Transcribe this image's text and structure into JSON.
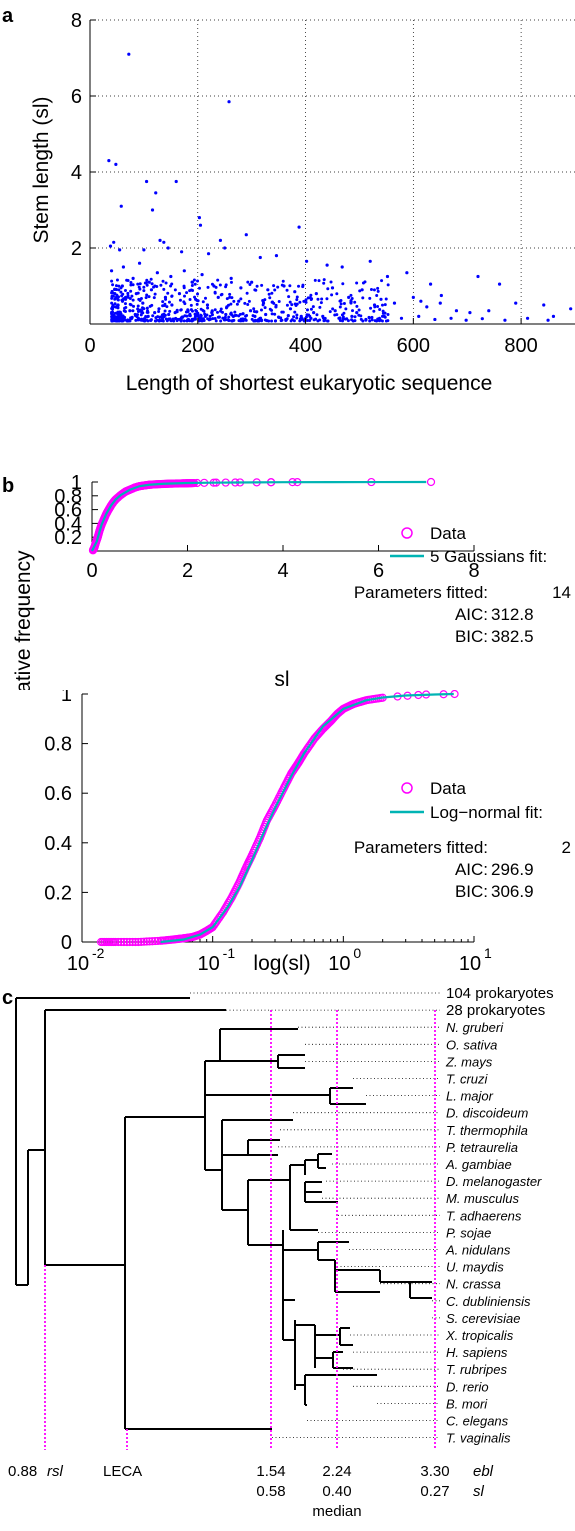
{
  "panels": {
    "a": "a",
    "b": "b",
    "c": "c"
  },
  "chart_data": [
    {
      "type": "scatter",
      "panel": "a",
      "xlabel": "Length of shortest eukaryotic sequence",
      "ylabel": "Stem length (sl)",
      "xlim": [
        0,
        900
      ],
      "ylim": [
        0,
        8
      ],
      "xticks": [
        0,
        200,
        400,
        600,
        800
      ],
      "yticks": [
        2,
        4,
        6,
        8
      ],
      "grid": true,
      "color": "#0000ff",
      "points": [
        [
          72,
          7.1
        ],
        [
          258,
          5.85
        ],
        [
          35,
          4.3
        ],
        [
          48,
          4.2
        ],
        [
          105,
          3.75
        ],
        [
          160,
          3.75
        ],
        [
          58,
          3.1
        ],
        [
          122,
          3.45
        ],
        [
          116,
          3.0
        ],
        [
          388,
          2.55
        ],
        [
          203,
          2.8
        ],
        [
          205,
          2.6
        ],
        [
          242,
          2.2
        ],
        [
          290,
          2.35
        ],
        [
          44,
          2.15
        ],
        [
          38,
          2.05
        ],
        [
          55,
          1.95
        ],
        [
          130,
          2.2
        ],
        [
          137,
          2.15
        ],
        [
          145,
          2.0
        ],
        [
          100,
          1.95
        ],
        [
          170,
          1.9
        ],
        [
          220,
          1.85
        ],
        [
          250,
          2.0
        ],
        [
          316,
          1.75
        ],
        [
          346,
          1.8
        ],
        [
          402,
          1.65
        ],
        [
          440,
          1.55
        ],
        [
          468,
          1.5
        ],
        [
          520,
          1.65
        ],
        [
          552,
          1.25
        ],
        [
          588,
          1.35
        ],
        [
          632,
          1.05
        ],
        [
          720,
          1.25
        ],
        [
          760,
          1.05
        ],
        [
          790,
          0.55
        ],
        [
          842,
          0.5
        ],
        [
          892,
          0.4
        ],
        [
          860,
          0.2
        ],
        [
          40,
          1.4
        ],
        [
          62,
          1.5
        ],
        [
          80,
          1.2
        ],
        [
          92,
          1.6
        ],
        [
          110,
          1.1
        ],
        [
          125,
          1.35
        ],
        [
          150,
          1.25
        ],
        [
          175,
          1.4
        ],
        [
          190,
          1.1
        ],
        [
          208,
          1.3
        ],
        [
          230,
          1.0
        ],
        [
          262,
          1.2
        ],
        [
          280,
          0.95
        ],
        [
          300,
          1.1
        ],
        [
          330,
          0.9
        ],
        [
          360,
          1.0
        ],
        [
          380,
          0.85
        ],
        [
          420,
          0.8
        ],
        [
          450,
          0.95
        ],
        [
          480,
          0.7
        ],
        [
          505,
          0.9
        ],
        [
          540,
          0.65
        ],
        [
          565,
          0.55
        ],
        [
          600,
          0.7
        ],
        [
          625,
          0.45
        ],
        [
          650,
          0.55
        ],
        [
          680,
          0.35
        ],
        [
          705,
          0.3
        ],
        [
          740,
          0.35
        ],
        [
          652,
          0.75
        ],
        [
          614,
          0.6
        ],
        [
          528,
          0.5
        ],
        [
          495,
          0.3
        ],
        [
          455,
          0.35
        ],
        [
          415,
          0.3
        ],
        [
          372,
          0.4
        ],
        [
          345,
          0.45
        ],
        [
          322,
          0.55
        ],
        [
          298,
          0.35
        ],
        [
          276,
          0.6
        ],
        [
          254,
          0.45
        ],
        [
          238,
          0.7
        ],
        [
          218,
          0.5
        ],
        [
          196,
          0.65
        ],
        [
          182,
          0.35
        ],
        [
          166,
          0.8
        ],
        [
          152,
          0.5
        ],
        [
          140,
          0.7
        ],
        [
          128,
          0.4
        ],
        [
          114,
          0.9
        ],
        [
          98,
          0.55
        ],
        [
          86,
          0.8
        ],
        [
          74,
          0.35
        ],
        [
          66,
          0.65
        ],
        [
          52,
          0.5
        ],
        [
          46,
          0.8
        ],
        [
          60,
          1.0
        ],
        [
          84,
          0.25
        ],
        [
          96,
          0.35
        ],
        [
          108,
          0.2
        ],
        [
          120,
          0.3
        ],
        [
          134,
          0.2
        ],
        [
          146,
          0.25
        ],
        [
          158,
          0.3
        ],
        [
          172,
          0.18
        ],
        [
          186,
          0.22
        ],
        [
          200,
          0.28
        ],
        [
          214,
          0.2
        ],
        [
          226,
          0.3
        ],
        [
          240,
          0.18
        ],
        [
          252,
          0.25
        ],
        [
          266,
          0.2
        ],
        [
          284,
          0.27
        ],
        [
          306,
          0.2
        ],
        [
          326,
          0.25
        ],
        [
          350,
          0.18
        ],
        [
          368,
          0.22
        ],
        [
          392,
          0.2
        ],
        [
          410,
          0.15
        ],
        [
          432,
          0.2
        ],
        [
          462,
          0.15
        ],
        [
          486,
          0.2
        ],
        [
          512,
          0.12
        ],
        [
          546,
          0.2
        ],
        [
          578,
          0.15
        ],
        [
          610,
          0.2
        ],
        [
          640,
          0.12
        ],
        [
          670,
          0.15
        ],
        [
          698,
          0.1
        ],
        [
          728,
          0.14
        ],
        [
          770,
          0.1
        ],
        [
          812,
          0.15
        ],
        [
          850,
          0.1
        ]
      ]
    },
    {
      "type": "line",
      "panel": "b-top",
      "xlabel": "sl",
      "ylabel": "Cumulative frequency",
      "xlim": [
        0,
        8
      ],
      "ylim": [
        0,
        1
      ],
      "xticks": [
        0,
        2,
        4,
        6,
        8
      ],
      "yticks": [
        0.2,
        0.4,
        0.6,
        0.8,
        1
      ],
      "series": [
        {
          "name": "Data",
          "style": "marker-circle",
          "color": "#ff00ff",
          "x": [
            0.02,
            0.05,
            0.08,
            0.12,
            0.16,
            0.2,
            0.25,
            0.3,
            0.35,
            0.4,
            0.45,
            0.5,
            0.6,
            0.7,
            0.8,
            0.9,
            1.0,
            1.1,
            1.2,
            1.3,
            1.45,
            1.6,
            1.75,
            1.9,
            2.0,
            2.1,
            2.2,
            2.35,
            2.55,
            2.6,
            2.8,
            3.0,
            3.1,
            3.45,
            3.75,
            3.75,
            4.2,
            4.3,
            5.85,
            7.1
          ],
          "y": [
            0.01,
            0.05,
            0.12,
            0.2,
            0.3,
            0.38,
            0.46,
            0.54,
            0.6,
            0.66,
            0.71,
            0.75,
            0.81,
            0.86,
            0.89,
            0.92,
            0.94,
            0.95,
            0.96,
            0.965,
            0.97,
            0.975,
            0.978,
            0.98,
            0.982,
            0.984,
            0.986,
            0.988,
            0.99,
            0.991,
            0.992,
            0.993,
            0.994,
            0.995,
            0.996,
            0.997,
            0.998,
            0.998,
            0.999,
            1.0
          ]
        },
        {
          "name": "5 Gaussians fit:",
          "style": "line",
          "color": "#00b4b4",
          "x": [
            0,
            0.1,
            0.2,
            0.3,
            0.4,
            0.5,
            0.6,
            0.8,
            1.0,
            1.2,
            1.5,
            2.0,
            2.5,
            3.0,
            4.0,
            5.0,
            6.0,
            7.0
          ],
          "y": [
            0.0,
            0.14,
            0.38,
            0.54,
            0.66,
            0.75,
            0.81,
            0.89,
            0.94,
            0.96,
            0.975,
            0.985,
            0.99,
            0.993,
            0.997,
            0.998,
            0.999,
            1.0
          ]
        }
      ],
      "stats": {
        "params_label": "Parameters fitted:",
        "params": "14",
        "aic_label": "AIC:",
        "aic": "312.8",
        "bic_label": "BIC:",
        "bic": "382.5"
      }
    },
    {
      "type": "line",
      "panel": "b-bottom",
      "xscale": "log",
      "xlabel": "log(sl)",
      "ylabel": "Cumulative frequency",
      "xlim": [
        0.01,
        10
      ],
      "ylim": [
        0,
        1
      ],
      "xtick_bases": [
        "10",
        "10",
        "10",
        "10"
      ],
      "xtick_exps": [
        "-2",
        "-1",
        "0",
        "1"
      ],
      "yticks": [
        0,
        0.2,
        0.4,
        0.6,
        0.8,
        1
      ],
      "series": [
        {
          "name": "Data",
          "style": "marker-circle",
          "color": "#ff00ff",
          "x": [
            0.014,
            0.018,
            0.027,
            0.04,
            0.05,
            0.06,
            0.07,
            0.08,
            0.09,
            0.1,
            0.12,
            0.14,
            0.16,
            0.18,
            0.2,
            0.23,
            0.26,
            0.3,
            0.35,
            0.4,
            0.45,
            0.5,
            0.6,
            0.7,
            0.8,
            0.9,
            1.0,
            1.2,
            1.5,
            2.0,
            2.6,
            3.1,
            3.75,
            4.3,
            5.85,
            7.1
          ],
          "y": [
            0.0,
            0.0,
            0.0,
            0.005,
            0.01,
            0.015,
            0.02,
            0.03,
            0.045,
            0.06,
            0.12,
            0.18,
            0.24,
            0.3,
            0.35,
            0.42,
            0.49,
            0.55,
            0.62,
            0.68,
            0.72,
            0.76,
            0.82,
            0.86,
            0.89,
            0.92,
            0.94,
            0.96,
            0.975,
            0.985,
            0.99,
            0.993,
            0.996,
            0.998,
            0.999,
            1.0
          ]
        },
        {
          "name": "Log−normal fit:",
          "style": "line",
          "color": "#00b4b4",
          "x": [
            0.04,
            0.06,
            0.08,
            0.1,
            0.13,
            0.16,
            0.2,
            0.25,
            0.3,
            0.4,
            0.5,
            0.7,
            1.0,
            1.5,
            2.0,
            3.0,
            5.0,
            7.0
          ],
          "y": [
            0.0,
            0.01,
            0.03,
            0.06,
            0.14,
            0.22,
            0.33,
            0.45,
            0.54,
            0.67,
            0.76,
            0.87,
            0.94,
            0.975,
            0.986,
            0.994,
            0.998,
            1.0
          ]
        }
      ],
      "stats": {
        "params_label": "Parameters fitted:",
        "params": "2",
        "aic_label": "AIC:",
        "aic": "296.9",
        "bic_label": "BIC:",
        "bic": "306.9"
      }
    }
  ],
  "tree": {
    "species": [
      "104 prokaryotes",
      "28 prokaryotes",
      "N. gruberi",
      "O. sativa",
      "Z. mays",
      "T. cruzi",
      "L. major",
      "D. discoideum",
      "T. thermophila",
      "P. tetraurelia",
      "A. gambiae",
      "D. melanogaster",
      "M. musculus",
      "T. adhaerens",
      "P. sojae",
      "A. nidulans",
      "U. maydis",
      "N. crassa",
      "C. dubliniensis",
      "S. cerevisiae",
      "X. tropicalis",
      "H. sapiens",
      "T. rubripes",
      "D. rerio",
      "B. mori",
      "C. elegans",
      "T. vaginalis"
    ],
    "highlighted": [
      "S. cerevisiae",
      "C. elegans",
      "T. vaginalis"
    ],
    "highlight_color": "#ff00ff",
    "bottom_labels": {
      "rsl_value": "0.88",
      "rsl_label": "rsl",
      "leca": "LECA",
      "ebl_values": [
        "1.54",
        "2.24",
        "3.30"
      ],
      "ebl_label": "ebl",
      "sl_values": [
        "0.58",
        "0.40",
        "0.27"
      ],
      "sl_label": "sl",
      "median": "median"
    }
  }
}
